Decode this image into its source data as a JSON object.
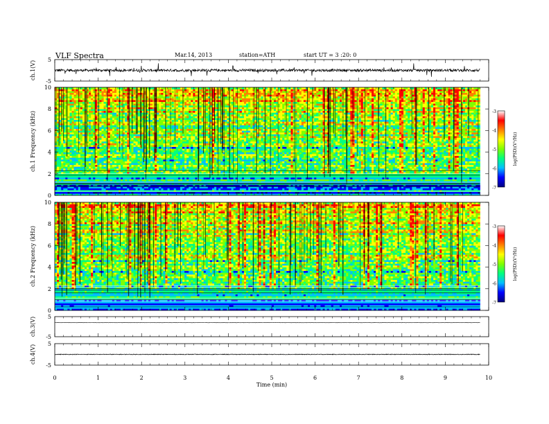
{
  "header": {
    "title": "VLF  Spectra",
    "date": "Mar.14, 2013",
    "station": "station=ATH",
    "start": "start  UT  =  3  :20: 0"
  },
  "chart_data": [
    {
      "type": "line",
      "panel": "ch1-waveform",
      "ylabel": "ch.1(V)",
      "ylim": [
        -5,
        5
      ],
      "yticks": [
        "5",
        "-5"
      ],
      "x_range_min": [
        0,
        9.8
      ],
      "baseline": 0.0,
      "amplitude": 0.6,
      "color": "#000000"
    },
    {
      "type": "heatmap",
      "panel": "ch1-spectrogram",
      "ylabel": "ch.1 Frequency (kHz)",
      "ylim": [
        0,
        10
      ],
      "yticks": [
        "0",
        "2",
        "4",
        "6",
        "8",
        "10"
      ],
      "x_range_min": [
        0,
        9.8
      ],
      "colorbar": {
        "label": "log(PSD)(V²/Hz)",
        "range": [
          -7,
          -3
        ],
        "ticks": [
          "-3",
          "-4",
          "-5",
          "-6",
          "-7"
        ]
      },
      "colormap": [
        "#000080",
        "#0000ff",
        "#00bfff",
        "#00ff80",
        "#80ff00",
        "#ffff00",
        "#ff8000",
        "#ff0000",
        "#ffffff"
      ]
    },
    {
      "type": "heatmap",
      "panel": "ch2-spectrogram",
      "ylabel": "ch.2 Frequency (kHz)",
      "ylim": [
        0,
        10
      ],
      "yticks": [
        "0",
        "2",
        "4",
        "6",
        "8",
        "10"
      ],
      "x_range_min": [
        0,
        9.8
      ],
      "colorbar": {
        "label": "log(PSD)(V²/Hz)",
        "range": [
          -7,
          -3
        ],
        "ticks": [
          "-3",
          "-4",
          "-5",
          "-6",
          "-7"
        ]
      },
      "colormap": [
        "#000080",
        "#0000ff",
        "#00bfff",
        "#00ff80",
        "#80ff00",
        "#ffff00",
        "#ff8000",
        "#ff0000",
        "#ffffff"
      ]
    },
    {
      "type": "line",
      "panel": "ch3-waveform",
      "ylabel": "ch.3(V)",
      "ylim": [
        -5,
        5
      ],
      "yticks": [
        "5",
        "-5"
      ],
      "x_range_min": [
        0,
        9.8
      ],
      "baseline": 2.0,
      "amplitude": 0.05,
      "color": "#000000"
    },
    {
      "type": "line",
      "panel": "ch4-waveform",
      "ylabel": "ch.4(V)",
      "ylim": [
        -5,
        5
      ],
      "yticks": [
        "5",
        "-5"
      ],
      "x_range_min": [
        0,
        9.8
      ],
      "baseline": 0.0,
      "amplitude": 0.15,
      "color": "#000000"
    }
  ],
  "xaxis": {
    "label": "Time  (min)",
    "range": [
      0,
      10
    ],
    "ticks": [
      "0",
      "1",
      "2",
      "3",
      "4",
      "5",
      "6",
      "7",
      "8",
      "9",
      "10"
    ]
  }
}
